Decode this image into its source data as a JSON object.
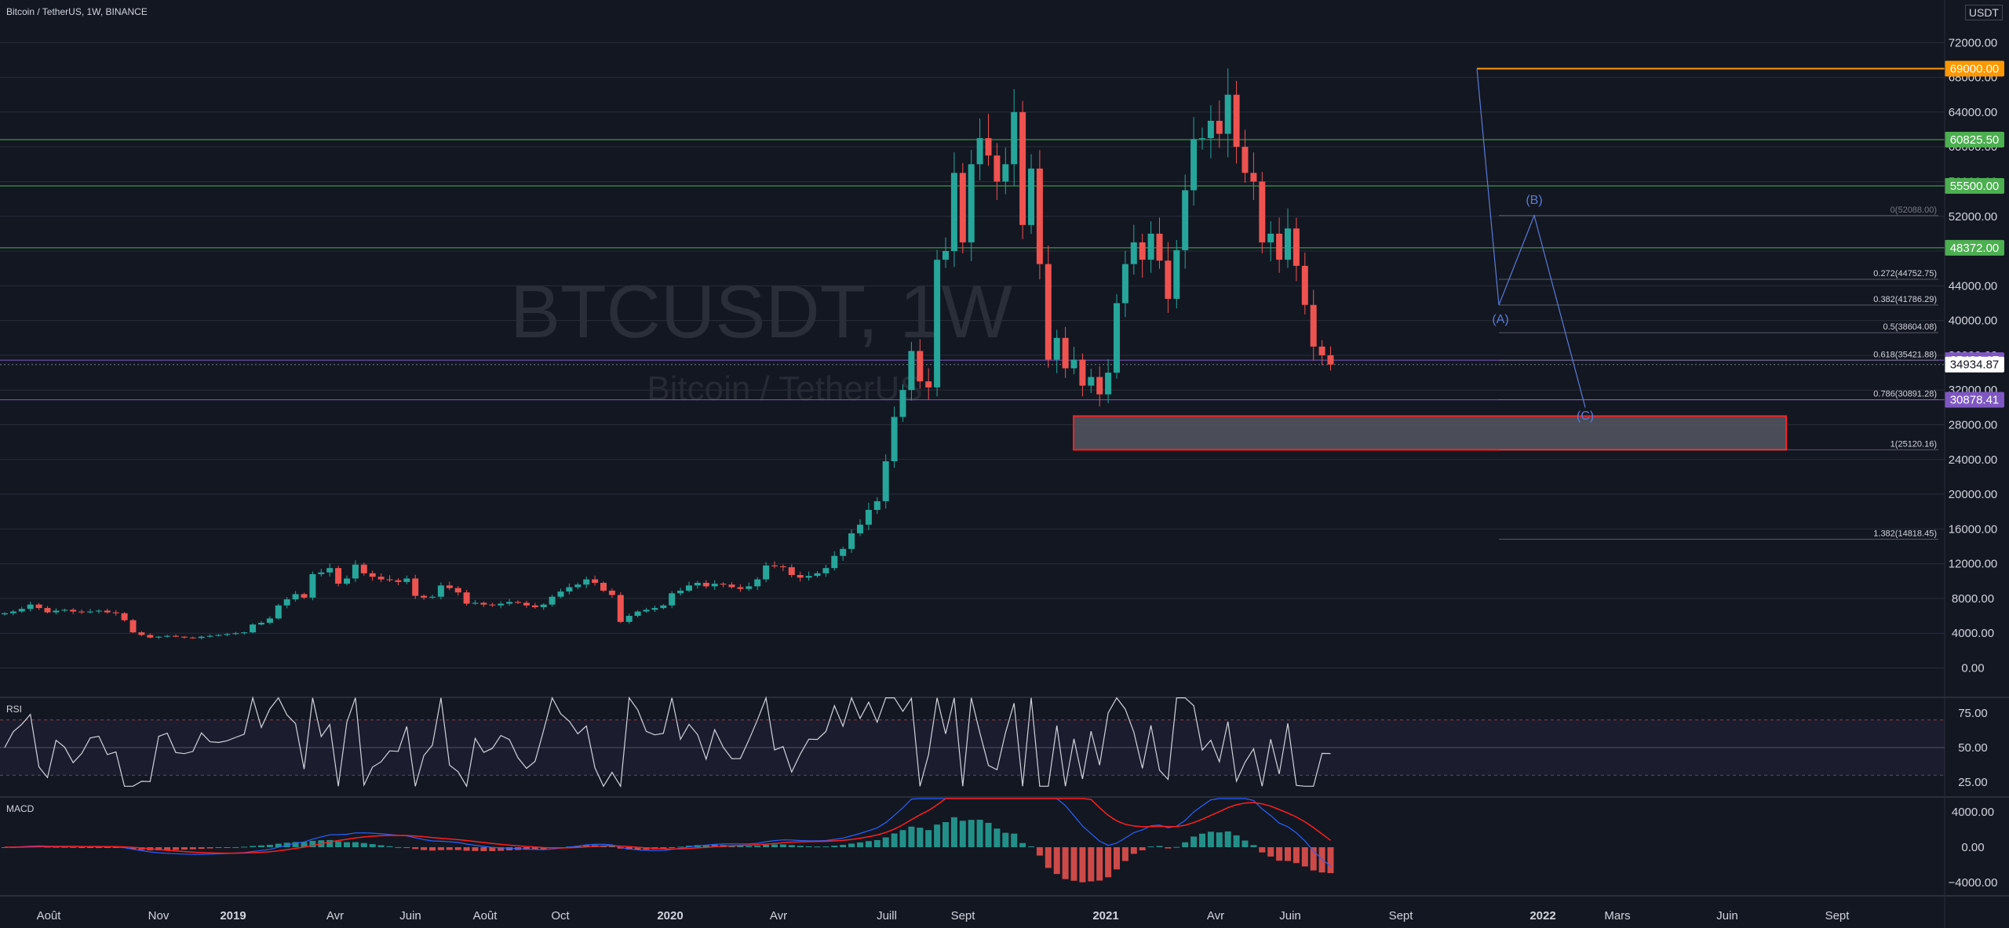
{
  "header": {
    "title": "Bitcoin / TetherUS, 1W, BINANCE",
    "currency": "USDT"
  },
  "watermark": {
    "symbol": "BTCUSDT, 1W",
    "name": "Bitcoin / TetherUS"
  },
  "colors": {
    "bg": "#131722",
    "up": "#26a69a",
    "down": "#ef5350",
    "grid": "#2a2e39",
    "green_level": "#4caf50",
    "orange_level": "#ff9800",
    "purple_level": "#7e57c2",
    "text": "#b2b5be",
    "wave": "#5b7bd5"
  },
  "chart_data": [
    {
      "type": "candlestick",
      "title": "Bitcoin / TetherUS, 1W, BINANCE",
      "x_ticks": [
        "Août",
        "Nov",
        "2019",
        "Avr",
        "Juin",
        "Août",
        "Oct",
        "2020",
        "Avr",
        "Juill",
        "Sept",
        "2021",
        "Avr",
        "Juin",
        "Sept",
        "2022",
        "Mars",
        "Juin",
        "Sept"
      ],
      "y_ticks": [
        "72000.00",
        "68000.00",
        "64000.00",
        "60000.00",
        "56000.00",
        "52000.00",
        "48000.00",
        "44000.00",
        "40000.00",
        "36000.00",
        "32000.00",
        "28000.00",
        "24000.00",
        "20000.00",
        "16000.00",
        "12000.00",
        "8000.00",
        "4000.00",
        "0.00"
      ],
      "ylim": [
        0,
        74000
      ],
      "price_labels": [
        {
          "text": "69000.00",
          "value": 69000,
          "color": "#ff9800"
        },
        {
          "text": "60825.50",
          "value": 60825.5,
          "color": "#4caf50"
        },
        {
          "text": "55500.00",
          "value": 55500,
          "color": "#4caf50"
        },
        {
          "text": "48372.00",
          "value": 48372,
          "color": "#4caf50"
        },
        {
          "text": "35436.17",
          "value": 35436.17,
          "color": "#7e57c2"
        },
        {
          "text": "34934.87",
          "value": 34934.87,
          "color": "#ffffff"
        },
        {
          "text": "30878.41",
          "value": 30878.41,
          "color": "#7e57c2"
        }
      ],
      "fib_levels": [
        {
          "label": "0(52088.00)",
          "value": 52088
        },
        {
          "label": "0.272(44752.75)",
          "value": 44752.75
        },
        {
          "label": "0.382(41786.29)",
          "value": 41786.29
        },
        {
          "label": "0.5(38604.08)",
          "value": 38604.08
        },
        {
          "label": "0.618(35421.88)",
          "value": 35421.88
        },
        {
          "label": "0.786(30891.28)",
          "value": 30891.28
        },
        {
          "label": "1(25120.16)",
          "value": 25120.16
        },
        {
          "label": "1.382(14818.45)",
          "value": 14818.45
        }
      ],
      "wave_labels": [
        "(A)",
        "(B)",
        "(C)"
      ],
      "support_zone": [
        25120,
        29000
      ],
      "closes_weekly": [
        6300,
        6500,
        6800,
        7300,
        6900,
        6400,
        6600,
        6700,
        6500,
        6400,
        6500,
        6600,
        6400,
        6300,
        5500,
        4100,
        3800,
        3500,
        3600,
        3700,
        3600,
        3500,
        3450,
        3600,
        3700,
        3800,
        3900,
        4000,
        4100,
        5000,
        5200,
        5700,
        7200,
        7900,
        8500,
        8100,
        10800,
        11000,
        11500,
        9700,
        10300,
        11900,
        10900,
        10500,
        10200,
        10100,
        9900,
        10300,
        8300,
        8100,
        8200,
        9500,
        9200,
        8700,
        7400,
        7500,
        7300,
        7200,
        7400,
        7600,
        7500,
        7200,
        7000,
        7300,
        8200,
        8800,
        9300,
        9600,
        10200,
        9800,
        8900,
        8400,
        5300,
        6000,
        6500,
        6700,
        6900,
        7200,
        8600,
        8900,
        9500,
        9800,
        9400,
        9700,
        9600,
        9300,
        9100,
        9400,
        10200,
        11800,
        11700,
        11600,
        10700,
        10400,
        10600,
        10900,
        11500,
        12900,
        13700,
        15500,
        16500,
        18200,
        19200,
        23800,
        28900,
        32000,
        36500,
        33000,
        32300,
        47000,
        48000,
        57000,
        49000,
        58000,
        61000,
        59000,
        56000,
        58000,
        64000,
        51000,
        57500,
        46500,
        35500,
        38000,
        34500,
        35500,
        32500,
        33500,
        31500,
        34000,
        42000,
        46500,
        49000,
        47000,
        50000,
        46900,
        42500,
        48100,
        55000,
        60900,
        61000,
        63000,
        61500,
        66000,
        60000,
        57000,
        56000,
        49000,
        50000,
        47000,
        50600,
        46300,
        41800,
        37000,
        36000,
        34934.87
      ]
    },
    {
      "type": "line",
      "title": "RSI",
      "y_ticks": [
        "75.00",
        "50.00",
        "25.00"
      ],
      "ylim": [
        20,
        90
      ],
      "bands": [
        70,
        50,
        30
      ]
    },
    {
      "type": "bar",
      "title": "MACD",
      "y_ticks": [
        "4000.00",
        "0.00",
        "−4000.00"
      ],
      "ylim": [
        -6500,
        6500
      ]
    }
  ]
}
